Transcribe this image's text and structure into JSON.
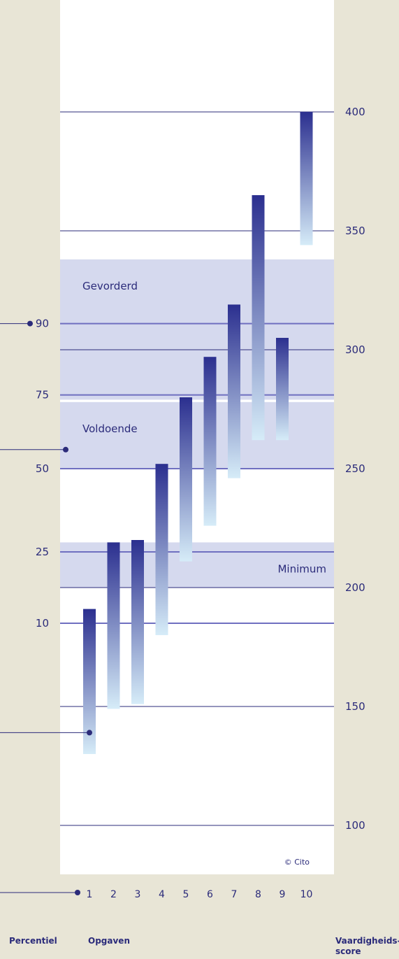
{
  "chart_data": {
    "type": "bar",
    "scale_axis": {
      "label_line1": "Vaardigheids-",
      "label_line2": "score",
      "ticks": [
        100,
        150,
        200,
        250,
        300,
        350,
        400
      ],
      "range": [
        80,
        447
      ]
    },
    "percentile_axis": {
      "label": "Percentiel",
      "ticks": [
        {
          "label": "90",
          "score": 311
        },
        {
          "label": "75",
          "score": 281
        },
        {
          "label": "50",
          "score": 250
        },
        {
          "label": "25",
          "score": 215
        },
        {
          "label": "10",
          "score": 185
        }
      ]
    },
    "levels": [
      {
        "name": "Gevorderd",
        "from": 279,
        "to": 338
      },
      {
        "name": "Voldoende",
        "from": 250,
        "to": 278
      },
      {
        "name": "Minimum",
        "from": 200,
        "to": 219
      }
    ],
    "tasks_label": "Opgaven",
    "series": [
      {
        "values": [
          {
            "task": "1",
            "low": 130,
            "high": 191
          },
          {
            "task": "2",
            "low": 149,
            "high": 219
          },
          {
            "task": "3",
            "low": 151,
            "high": 220
          },
          {
            "task": "4",
            "low": 180,
            "high": 252
          },
          {
            "task": "5",
            "low": 211,
            "high": 280
          },
          {
            "task": "6",
            "low": 226,
            "high": 297
          },
          {
            "task": "7",
            "low": 246,
            "high": 319
          },
          {
            "task": "8",
            "low": 262,
            "high": 365
          },
          {
            "task": "9",
            "low": 262,
            "high": 305
          },
          {
            "task": "10",
            "low": 344,
            "high": 400
          }
        ]
      }
    ],
    "markers": [
      {
        "score": 311
      },
      {
        "score": 258
      },
      {
        "score": 139
      }
    ],
    "colors": {
      "background": "#e8e5d6",
      "plot": "#ffffff",
      "band": "#d5d9ee",
      "line": "#2b2b7a",
      "bar_top": "#2b2f8f",
      "bar_bottom": "#d6ecf8"
    },
    "copyright": "© Cito"
  }
}
